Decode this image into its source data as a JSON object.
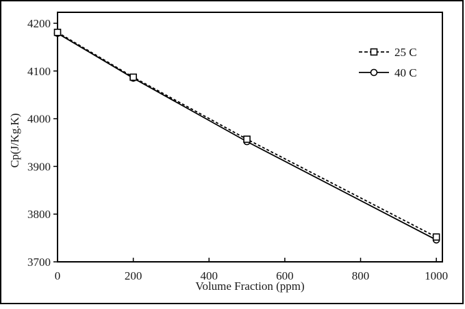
{
  "figure": {
    "background_color": "#ffffff",
    "border_color": "#000000",
    "line_color": "#000000",
    "text_color": "#1a1a1a"
  },
  "chart_data": {
    "type": "line",
    "title": "",
    "xlabel": "Volume Fraction (ppm)",
    "ylabel": "Cp(J/Kg.K)",
    "x": [
      0,
      200,
      500,
      1000
    ],
    "series": [
      {
        "name": "25 C",
        "values": [
          4181,
          4087,
          3957,
          3752
        ],
        "line_style": "dashed",
        "marker": "square",
        "color": "#000000"
      },
      {
        "name": "40 C",
        "values": [
          4179,
          4085,
          3952,
          3746
        ],
        "line_style": "solid",
        "marker": "circle",
        "color": "#000000"
      }
    ],
    "x_ticks": [
      "0",
      "200",
      "400",
      "600",
      "800",
      "1000"
    ],
    "y_ticks": [
      "3700",
      "3800",
      "3900",
      "4000",
      "4100",
      "4200"
    ],
    "xlim": [
      0,
      1016
    ],
    "ylim": [
      3700,
      4223
    ],
    "grid": false,
    "legend_position": "upper-right"
  }
}
